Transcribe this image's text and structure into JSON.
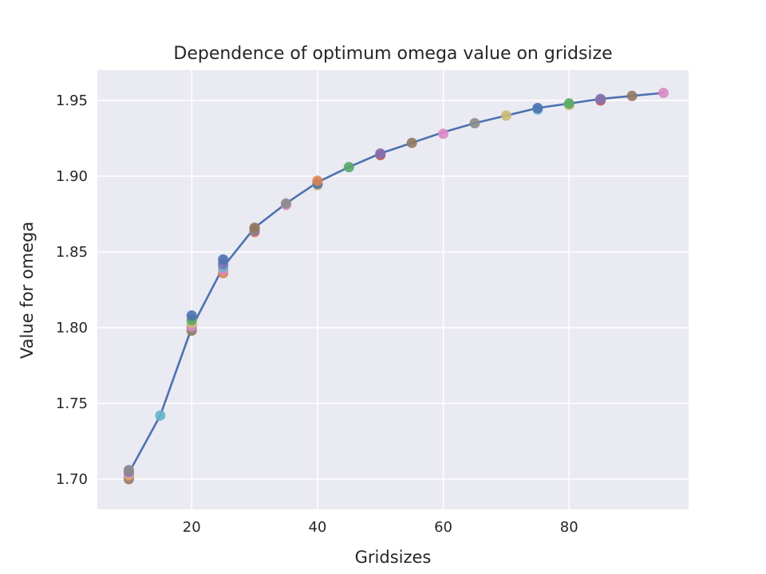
{
  "chart_data": {
    "type": "scatter",
    "title": "Dependence of optimum omega value on gridsize",
    "xlabel": "Gridsizes",
    "ylabel": "Value for omega",
    "xlim": [
      5,
      99
    ],
    "ylim": [
      1.68,
      1.97
    ],
    "x_ticks": [
      20,
      40,
      60,
      80
    ],
    "x_tick_labels": [
      "20",
      "40",
      "60",
      "80"
    ],
    "y_ticks": [
      1.7,
      1.75,
      1.8,
      1.85,
      1.9,
      1.95
    ],
    "y_tick_labels": [
      "1.70",
      "1.75",
      "1.80",
      "1.85",
      "1.90",
      "1.95"
    ],
    "grid": true,
    "background_color": "#eaeaf2",
    "line_color": "#4c72b0",
    "palette": [
      "#4c72b0",
      "#dd8452",
      "#55a868",
      "#c44e52",
      "#8172b3",
      "#937860",
      "#da8bc3",
      "#8c8c8c",
      "#ccb974",
      "#64b5cd"
    ],
    "fit_line": {
      "x": [
        10,
        15,
        20,
        25,
        30,
        35,
        40,
        45,
        50,
        55,
        60,
        65,
        70,
        75,
        80,
        85,
        90,
        95
      ],
      "y": [
        1.704,
        1.742,
        1.8,
        1.84,
        1.866,
        1.882,
        1.896,
        1.906,
        1.915,
        1.922,
        1.929,
        1.935,
        1.94,
        1.945,
        1.948,
        1.951,
        1.953,
        1.955
      ]
    },
    "points": [
      {
        "x": 10,
        "y": 1.7,
        "c": 5
      },
      {
        "x": 10,
        "y": 1.701,
        "c": 7
      },
      {
        "x": 10,
        "y": 1.702,
        "c": 1
      },
      {
        "x": 10,
        "y": 1.703,
        "c": 8
      },
      {
        "x": 10,
        "y": 1.704,
        "c": 6
      },
      {
        "x": 10,
        "y": 1.705,
        "c": 4
      },
      {
        "x": 10,
        "y": 1.706,
        "c": 7
      },
      {
        "x": 15,
        "y": 1.742,
        "c": 9
      },
      {
        "x": 20,
        "y": 1.798,
        "c": 5
      },
      {
        "x": 20,
        "y": 1.8,
        "c": 7
      },
      {
        "x": 20,
        "y": 1.801,
        "c": 6
      },
      {
        "x": 20,
        "y": 1.803,
        "c": 8
      },
      {
        "x": 20,
        "y": 1.805,
        "c": 2
      },
      {
        "x": 20,
        "y": 1.808,
        "c": 0
      },
      {
        "x": 25,
        "y": 1.836,
        "c": 1
      },
      {
        "x": 25,
        "y": 1.838,
        "c": 6
      },
      {
        "x": 25,
        "y": 1.84,
        "c": 9
      },
      {
        "x": 25,
        "y": 1.842,
        "c": 4
      },
      {
        "x": 25,
        "y": 1.845,
        "c": 0
      },
      {
        "x": 30,
        "y": 1.863,
        "c": 1
      },
      {
        "x": 30,
        "y": 1.864,
        "c": 4
      },
      {
        "x": 30,
        "y": 1.865,
        "c": 7
      },
      {
        "x": 30,
        "y": 1.866,
        "c": 5
      },
      {
        "x": 35,
        "y": 1.881,
        "c": 6
      },
      {
        "x": 35,
        "y": 1.882,
        "c": 7
      },
      {
        "x": 40,
        "y": 1.894,
        "c": 8
      },
      {
        "x": 40,
        "y": 1.895,
        "c": 0
      },
      {
        "x": 40,
        "y": 1.897,
        "c": 1
      },
      {
        "x": 45,
        "y": 1.906,
        "c": 2
      },
      {
        "x": 50,
        "y": 1.914,
        "c": 3
      },
      {
        "x": 50,
        "y": 1.915,
        "c": 4
      },
      {
        "x": 55,
        "y": 1.922,
        "c": 5
      },
      {
        "x": 60,
        "y": 1.928,
        "c": 6
      },
      {
        "x": 65,
        "y": 1.935,
        "c": 7
      },
      {
        "x": 70,
        "y": 1.94,
        "c": 8
      },
      {
        "x": 75,
        "y": 1.944,
        "c": 9
      },
      {
        "x": 75,
        "y": 1.945,
        "c": 0
      },
      {
        "x": 80,
        "y": 1.947,
        "c": 8
      },
      {
        "x": 80,
        "y": 1.948,
        "c": 2
      },
      {
        "x": 85,
        "y": 1.95,
        "c": 3
      },
      {
        "x": 85,
        "y": 1.951,
        "c": 4
      },
      {
        "x": 90,
        "y": 1.953,
        "c": 5
      },
      {
        "x": 95,
        "y": 1.955,
        "c": 6
      }
    ]
  }
}
